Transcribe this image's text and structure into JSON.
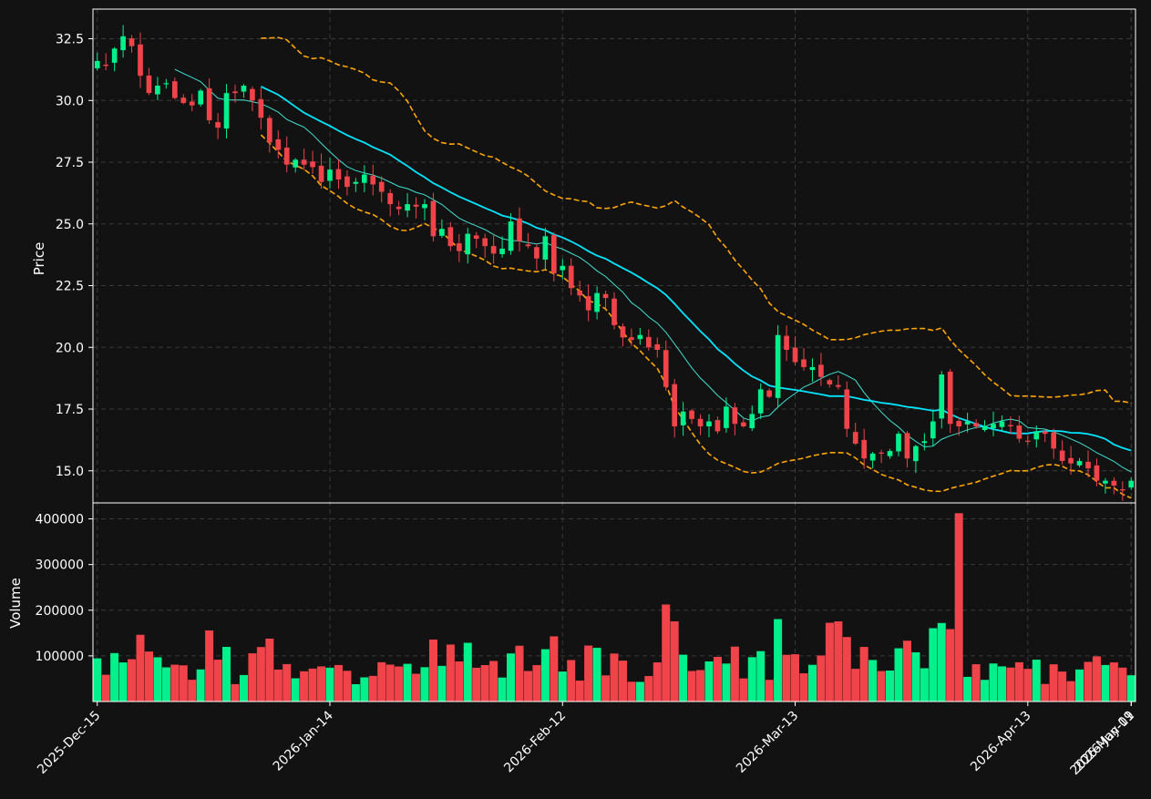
{
  "colors": {
    "background": "#121212",
    "axes": "#ffffff",
    "grid": "#3a3a3a",
    "up": "#00f08c",
    "down": "#f0444a",
    "ma_fast": "#40e0d0",
    "ma_slow": "#00e5ff",
    "band": "#ffa500"
  },
  "chart_data": {
    "type": "candlestick",
    "title": "",
    "price_ylabel": "Price",
    "volume_ylabel": "Volume",
    "price_ylim": [
      13.7,
      33.7
    ],
    "volume_ylim": [
      0,
      435000
    ],
    "price_ticks": [
      "15.0",
      "17.5",
      "20.0",
      "22.5",
      "25.0",
      "27.5",
      "30.0",
      "32.5"
    ],
    "volume_ticks": [
      "100000",
      "200000",
      "300000",
      "400000"
    ],
    "x_tick_labels": [
      "2025-Dec-15",
      "2026-Jan-14",
      "2026-Feb-12",
      "2026-Mar-13",
      "2026-Apr-13",
      "2026-May-11",
      "2026-Jun-09"
    ],
    "x_tick_indices": [
      0,
      27,
      54,
      81,
      108,
      135,
      162
    ],
    "grid": true,
    "series_names": [
      "OHLC",
      "Volume",
      "MA fast",
      "MA slow",
      "Upper band",
      "Lower band"
    ],
    "closes": [
      31.6,
      31.4,
      32.1,
      32.6,
      32.2,
      31.0,
      30.3,
      30.6,
      30.7,
      30.1,
      29.9,
      29.8,
      30.4,
      29.2,
      28.9,
      30.3,
      30.3,
      30.6,
      30.0,
      29.3,
      28.3,
      28.0,
      27.4,
      27.6,
      27.4,
      27.3,
      26.7,
      27.2,
      26.8,
      26.5,
      26.7,
      27.0,
      26.6,
      26.3,
      25.8,
      25.6,
      25.8,
      25.7,
      25.8,
      24.5,
      24.8,
      24.1,
      23.9,
      24.6,
      24.4,
      24.1,
      23.8,
      24.0,
      25.1,
      24.3,
      24.1,
      23.6,
      24.5,
      23.0,
      23.3,
      22.4,
      22.1,
      21.5,
      22.2,
      22.0,
      20.9,
      20.4,
      20.3,
      20.5,
      20.0,
      19.9,
      18.4,
      16.8,
      17.4,
      17.1,
      16.8,
      17.0,
      16.6,
      17.6,
      16.9,
      16.8,
      17.3,
      18.3,
      18.0,
      20.5,
      19.9,
      19.4,
      19.2,
      19.2,
      18.8,
      18.5,
      18.4,
      16.7,
      16.1,
      15.5,
      15.7,
      15.7,
      15.8,
      16.5,
      15.5,
      16.0,
      16.2,
      17.0,
      18.9,
      16.9,
      16.8,
      17.0,
      16.8,
      16.8,
      16.9,
      17.0,
      16.8,
      16.3,
      16.2,
      16.6,
      16.5,
      15.9,
      15.4,
      15.3,
      15.4,
      15.1,
      14.6,
      14.6,
      14.4,
      14.2,
      14.6
    ]
  }
}
